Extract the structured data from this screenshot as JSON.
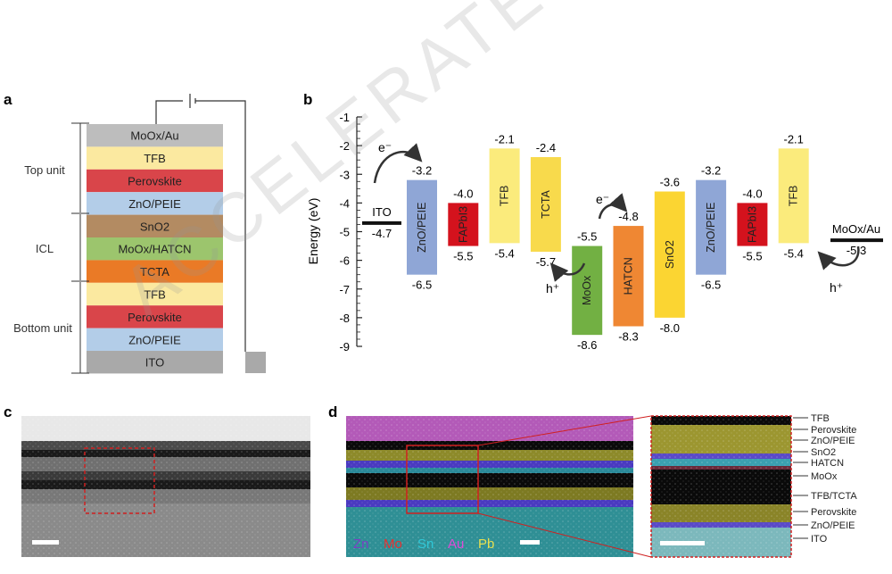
{
  "panel_labels": {
    "a": "a",
    "b": "b",
    "c": "c",
    "d": "d"
  },
  "watermark": "ACCELERATED ARTICLE PREVIEW",
  "panel_a": {
    "layers": [
      {
        "label": "MoOx/Au",
        "color": "#bdbdbd"
      },
      {
        "label": "TFB",
        "color": "#fbe9a0"
      },
      {
        "label": "Perovskite",
        "color": "#d9454a"
      },
      {
        "label": "ZnO/PEIE",
        "color": "#b3cde8"
      },
      {
        "label": "SnO2",
        "color": "#b38b62"
      },
      {
        "label": "MoOx/HATCN",
        "color": "#9cc56d"
      },
      {
        "label": "TCTA",
        "color": "#ea7a26"
      },
      {
        "label": "TFB",
        "color": "#fbe9a0"
      },
      {
        "label": "Perovskite",
        "color": "#d9454a"
      },
      {
        "label": "ZnO/PEIE",
        "color": "#b3cde8"
      },
      {
        "label": "ITO",
        "color": "#a9a9a9"
      }
    ],
    "groups": [
      "Top unit",
      "ICL",
      "Bottom unit"
    ]
  },
  "chart_data": {
    "type": "energy-level diagram",
    "ylabel": "Energy (eV)",
    "ylim": [
      -9,
      -1
    ],
    "yticks": [
      "-1",
      "-2",
      "-3",
      "-4",
      "-5",
      "-6",
      "-7",
      "-8",
      "-9"
    ],
    "bars": [
      {
        "name": "ZnO/PEIE",
        "top": -3.2,
        "bottom": -6.5,
        "top_label": "-3.2",
        "bottom_label": "-6.5",
        "color": "#8fa6d6"
      },
      {
        "name": "FAPbI3",
        "top": -4.0,
        "bottom": -5.5,
        "top_label": "-4.0",
        "bottom_label": "-5.5",
        "color": "#d4121d"
      },
      {
        "name": "TFB",
        "top": -2.1,
        "bottom": -5.4,
        "top_label": "-2.1",
        "bottom_label": "-5.4",
        "color": "#fbeb7c"
      },
      {
        "name": "TCTA",
        "top": -2.4,
        "bottom": -5.7,
        "top_label": "-2.4",
        "bottom_label": "-5.7",
        "color": "#f8da4c"
      },
      {
        "name": "MoOx",
        "top": -5.5,
        "bottom": -8.6,
        "top_label": "-5.5",
        "bottom_label": "-8.6",
        "color": "#72b043"
      },
      {
        "name": "HATCN",
        "top": -4.8,
        "bottom": -8.3,
        "top_label": "-4.8",
        "bottom_label": "-8.3",
        "color": "#ef8733"
      },
      {
        "name": "SnO2",
        "top": -3.6,
        "bottom": -8.0,
        "top_label": "-3.6",
        "bottom_label": "-8.0",
        "color": "#fbd532"
      },
      {
        "name": "ZnO/PEIE",
        "top": -3.2,
        "bottom": -6.5,
        "top_label": "-3.2",
        "bottom_label": "-6.5",
        "color": "#8fa6d6"
      },
      {
        "name": "FAPbI3",
        "top": -4.0,
        "bottom": -5.5,
        "top_label": "-4.0",
        "bottom_label": "-5.5",
        "color": "#d4121d"
      },
      {
        "name": "TFB",
        "top": -2.1,
        "bottom": -5.4,
        "top_label": "-2.1",
        "bottom_label": "-5.4",
        "color": "#fbeb7c"
      }
    ],
    "electrodes": [
      {
        "name": "ITO",
        "level": -4.7,
        "label": "-4.7"
      },
      {
        "name": "MoOx/Au",
        "level": -5.3,
        "label": "-5.3"
      }
    ],
    "annotations": [
      "e⁻",
      "e⁻",
      "h⁺",
      "h⁺"
    ]
  },
  "panel_d": {
    "legend": [
      {
        "label": "Zn",
        "color": "#7b3fc4"
      },
      {
        "label": "Mo",
        "color": "#e53030"
      },
      {
        "label": "Sn",
        "color": "#30c8d8"
      },
      {
        "label": "Au",
        "color": "#e04ad8"
      },
      {
        "label": "Pb",
        "color": "#e8e050"
      }
    ],
    "inset_labels": [
      "TFB",
      "Perovskite",
      "ZnO/PEIE",
      "SnO2",
      "HATCN",
      "MoOx",
      "TFB/TCTA",
      "Perovskite",
      "ZnO/PEIE",
      "ITO"
    ]
  }
}
